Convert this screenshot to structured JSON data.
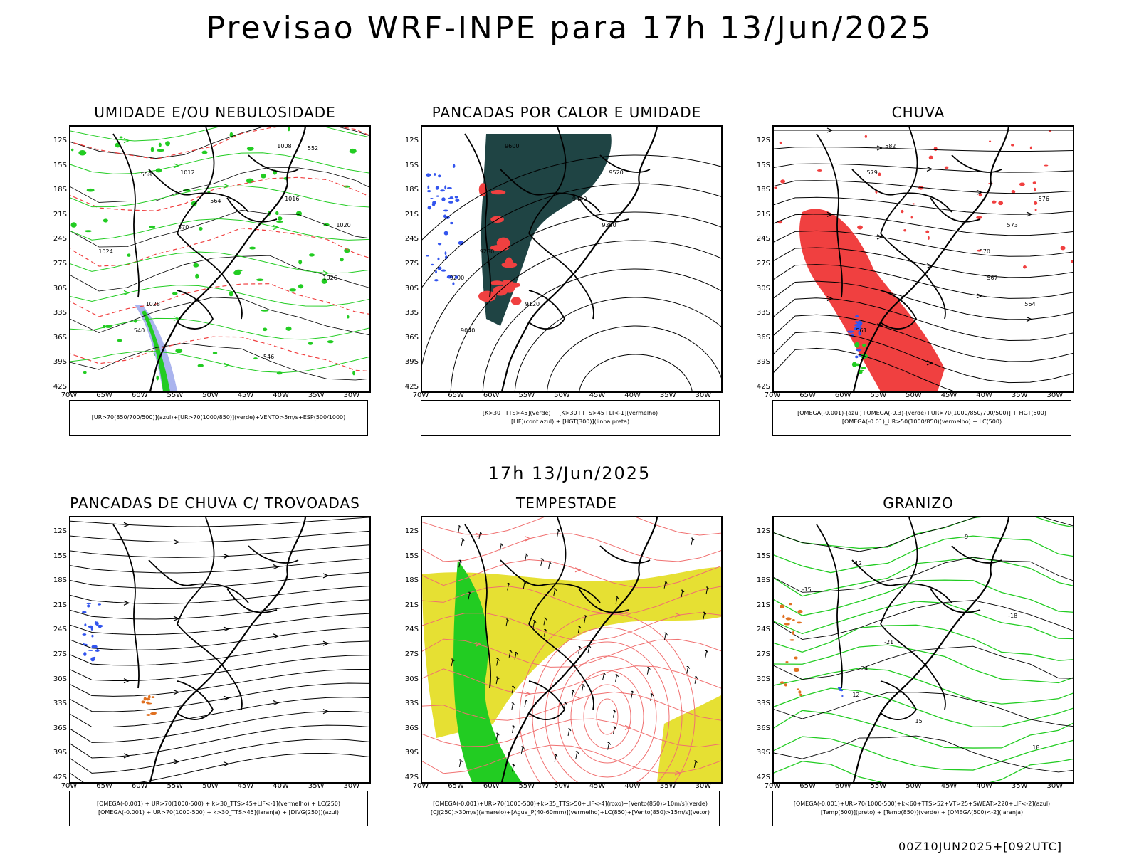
{
  "header": {
    "title": "Previsao WRF-INPE  para 17h 13/Jun/2025"
  },
  "middle": {
    "title": "17h 13/Jun/2025"
  },
  "footer": {
    "stamp": "00Z10JUN2025+[092UTC]"
  },
  "axes": {
    "lat": [
      "12S",
      "15S",
      "18S",
      "21S",
      "24S",
      "27S",
      "30S",
      "33S",
      "36S",
      "39S",
      "42S"
    ],
    "lon": [
      "70W",
      "65W",
      "60W",
      "55W",
      "50W",
      "45W",
      "40W",
      "35W",
      "30W"
    ]
  },
  "colors": {
    "red": "#f04040",
    "green": "#22cc22",
    "blue": "#3355ee",
    "yellow": "#e6e033",
    "teal": "#1f4444",
    "orange": "#e07020",
    "salmon": "#f07070"
  },
  "panels": [
    {
      "title": "UMIDADE E/OU NEBULOSIDADE",
      "legend": [
        "[UR>70(850/700/500)](azul)+[UR>70(1000/850)](verde)+VENTO>5m/s+ESP(500/1000)"
      ],
      "labels": [
        "1008",
        "1012",
        "1016",
        "1020",
        "1024",
        "1026",
        "1028",
        "540",
        "546",
        "552",
        "558",
        "564",
        "570"
      ]
    },
    {
      "title": "PANCADAS POR CALOR E UMIDADE",
      "legend": [
        "[K>30+TTS>45](verde) + [K>30+TTS>45+LI<-1](vermelho)",
        "[LIF](cont.azul) + [HGT(300)](linha preta)"
      ],
      "labels": [
        "9600",
        "9520",
        "9440",
        "9360",
        "9280",
        "9200",
        "9120",
        "9040"
      ]
    },
    {
      "title": "CHUVA",
      "legend": [
        "[OMEGA(-0.001)-(azul)+OMEGA(-0.3)-(verde)+UR>70(1000/850/700/500)] + HGT(500)",
        "[OMEGA(-0.01)_UR>50(1000/850)(vermelho) + LC(500)"
      ],
      "labels": [
        "582",
        "579",
        "576",
        "573",
        "570",
        "567",
        "564",
        "561"
      ]
    },
    {
      "title": "PANCADAS DE CHUVA C/ TROVOADAS",
      "legend": [
        "[OMEGA(-0.001) + UR>70(1000-500) + k>30_TTS>45+LIF<-1](vermelho) + LC(250)",
        "[OMEGA(-0.001) + UR>70(1000-500) + k>30_TTS>45](laranja) + [DIVG(250)](azul)"
      ],
      "labels": []
    },
    {
      "title": "TEMPESTADE",
      "legend": [
        "[OMEGA(-0.001)+UR>70(1000-500)+k>35_TTS>50+LIF<-4](roxo)+[Vento(850)>10m/s](verde)",
        "[CJ(250)>30m/s](amarelo)+[Agua_P(40-60mm)](vermelho)+LC(850)+[Vento(850)>15m/s](vetor)"
      ],
      "labels": []
    },
    {
      "title": "GRANIZO",
      "legend": [
        "[OMEGA(-0.001)+UR>70(1000-500)+k<60+TTS>52+VT>25+SWEAT>220+LIF<-2](azul)",
        "[Temp(500)](preto) + [Temp(850)](verde) + [OMEGA(500)<-2](laranja)"
      ],
      "labels": [
        "-9",
        "-12",
        "-15",
        "-18",
        "-21",
        "-24",
        "12",
        "15",
        "18"
      ]
    }
  ]
}
